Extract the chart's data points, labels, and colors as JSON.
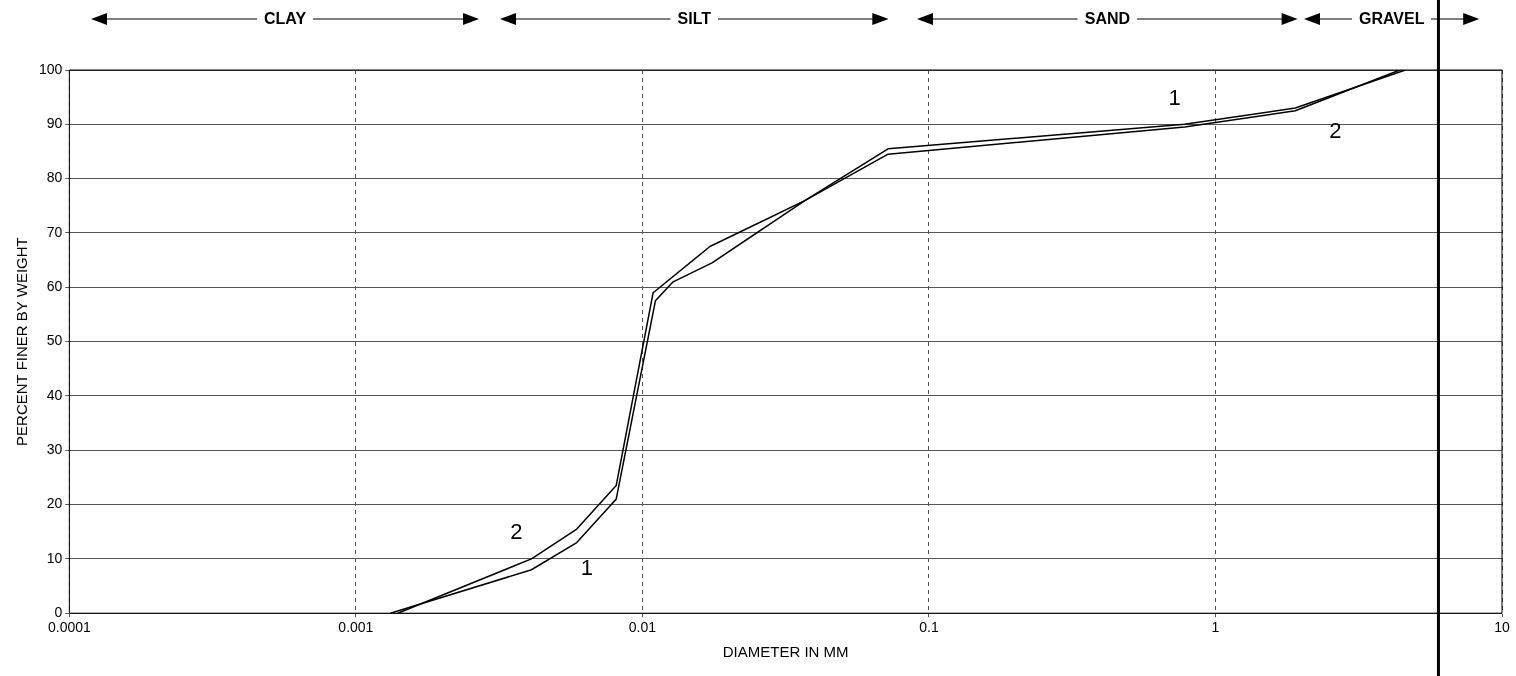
{
  "chart_data": {
    "type": "line",
    "xlabel": "DIAMETER IN MM",
    "ylabel": "PERCENT FINER BY WEIGHT",
    "log": "x",
    "xlim": [
      0.0001,
      10
    ],
    "xticks": [
      0.0001,
      0.001,
      0.01,
      0.1,
      1,
      10
    ],
    "ylim": [
      0,
      100
    ],
    "yticks": [
      0,
      10,
      20,
      30,
      40,
      50,
      60,
      70,
      80,
      90,
      100
    ],
    "grid": true,
    "line_style": "solid",
    "marker": "none",
    "legend": false,
    "series": [
      {
        "name": "1",
        "color": "#000000",
        "x": [
          0.00132,
          0.0041,
          0.0059,
          0.0081,
          0.0111,
          0.0128,
          0.0175,
          0.037,
          0.072,
          0.78,
          1.9,
          4.4
        ],
        "values": [
          0,
          8,
          13,
          21,
          57.5,
          61,
          64.5,
          76,
          84.5,
          89.5,
          92.5,
          100
        ]
      },
      {
        "name": "2",
        "color": "#000000",
        "x": [
          0.0014,
          0.0041,
          0.0059,
          0.0081,
          0.0109,
          0.0172,
          0.037,
          0.072,
          0.78,
          1.9,
          4.6
        ],
        "values": [
          0,
          10,
          15.5,
          23.5,
          59,
          67.5,
          76,
          85.5,
          90,
          93,
          100
        ]
      }
    ],
    "annotations": [
      "CLAY",
      "SILT",
      "SAND",
      "GRAVEL"
    ],
    "ref_lines": [
      {
        "axis": "x",
        "value": 6,
        "color": "#000000"
      }
    ]
  }
}
